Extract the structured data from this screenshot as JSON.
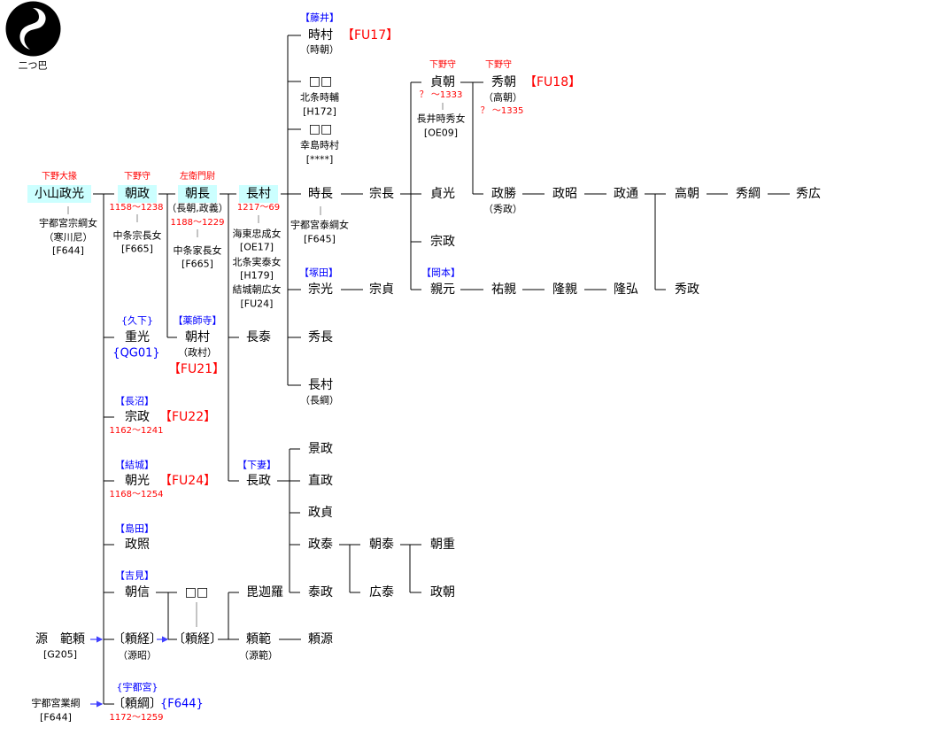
{
  "crest": {
    "label": "二つ巴",
    "icon": "futatsu-tomoe-crest"
  },
  "colors": {
    "highlight": "#ccffff",
    "office_title": "#ff0000",
    "clan_name": "#0000ff",
    "arrow": "#4040ff"
  },
  "p": {
    "masamitsu": {
      "title": "下野大掾",
      "name": "小山政光",
      "spouse": "宇都宮宗綱女",
      "spouse_alias": "（寒川尼）",
      "spouse_ref": "[F644]"
    },
    "tomomasa": {
      "title": "下野守",
      "name": "朝政",
      "dates": "1158～1238",
      "spouse": "中条宗長女",
      "spouse_ref": "[F665]"
    },
    "tomonaga": {
      "title": "左衛門尉",
      "name": "朝長",
      "alias": "（長朝,政義）",
      "dates": "1188～1229",
      "spouse": "中条家長女",
      "spouse_ref": "[F665]"
    },
    "nagamura": {
      "name": "長村",
      "dates": "1217～69",
      "spouse1": "海東忠成女",
      "spouse1_ref": "[OE17]",
      "spouse2": "北条実泰女",
      "spouse2_ref": "[H179]",
      "spouse3": "結城朝広女",
      "spouse3_ref": "[FU24]"
    },
    "tokimura": {
      "clan": "【藤井】",
      "name": "時村",
      "ref": "【FU17】",
      "alias": "（時朝）"
    },
    "unknown1": {
      "name": "□□",
      "mother": "北条時輔",
      "mother_ref": "[H172]"
    },
    "unknown2": {
      "name": "□□",
      "mother": "幸島時村",
      "mother_ref": "[****]"
    },
    "tokinaga": {
      "name": "時長",
      "spouse": "宇都宮泰綱女",
      "spouse_ref": "[F645]"
    },
    "munenaga": {
      "name": "宗長"
    },
    "sadatomo": {
      "title": "下野守",
      "name": "貞朝",
      "dates": "？ ～1333",
      "spouse": "長井時秀女",
      "spouse_ref": "[OE09]"
    },
    "hidetomo": {
      "title": "下野守",
      "name": "秀朝",
      "alias": "（高朝）",
      "dates": "？ ～1335",
      "ref": "【FU18】"
    },
    "sadamitsu": {
      "name": "貞光"
    },
    "munemasa2": {
      "name": "宗政"
    },
    "chikamoto": {
      "clan": "【岡本】",
      "name": "親元"
    },
    "masakatsu": {
      "name": "政勝",
      "alias": "（秀政）"
    },
    "masaaki": {
      "name": "政昭"
    },
    "masamichi": {
      "name": "政通"
    },
    "takatomo": {
      "name": "高朝"
    },
    "hidetsuna": {
      "name": "秀綱"
    },
    "hidehiro": {
      "name": "秀広"
    },
    "hidemasa": {
      "name": "秀政"
    },
    "sukechika": {
      "name": "祐親"
    },
    "takachika": {
      "name": "隆親"
    },
    "takahiro": {
      "name": "隆弘"
    },
    "munemitsu": {
      "clan": "【塚田】",
      "name": "宗光"
    },
    "munesada": {
      "name": "宗貞"
    },
    "hidenaga": {
      "name": "秀長"
    },
    "nagamura2": {
      "name": "長村",
      "alias": "（長綱）"
    },
    "nagayasu": {
      "name": "長泰"
    },
    "nagamasa": {
      "clan": "【下妻】",
      "name": "長政"
    },
    "kagemasa": {
      "name": "景政"
    },
    "naomasa": {
      "name": "直政"
    },
    "masasada": {
      "name": "政貞"
    },
    "masayasu": {
      "name": "政泰"
    },
    "yasumasa": {
      "name": "泰政"
    },
    "tomoyasu": {
      "name": "朝泰"
    },
    "hiroyasu": {
      "name": "広泰"
    },
    "tomoshige": {
      "name": "朝重"
    },
    "masatomo": {
      "name": "政朝"
    },
    "shigemitsu": {
      "clan": "{久下}",
      "name": "重光",
      "ref": "{QG01}"
    },
    "tomomura": {
      "clan": "【薬師寺】",
      "name": "朝村",
      "alias": "（政村）",
      "ref": "【FU21】"
    },
    "munemasa": {
      "clan": "【長沼】",
      "name": "宗政",
      "ref": "【FU22】",
      "dates": "1162～1241"
    },
    "tomomitsu": {
      "clan": "【結城】",
      "name": "朝光",
      "ref": "【FU24】",
      "dates": "1168～1254"
    },
    "masateru": {
      "clan": "【島田】",
      "name": "政照"
    },
    "tomonobu": {
      "clan": "【吉見】",
      "name": "朝信"
    },
    "unknown3": {
      "name": "□□"
    },
    "yoritsune": {
      "name": "〔頼経〕",
      "alias": "（源昭）"
    },
    "yoritsune2": {
      "name": "〔頼経〕"
    },
    "bikara": {
      "name": "毘迦羅"
    },
    "yorinori": {
      "name": "頼範",
      "alias": "（源範）"
    },
    "yorimoto": {
      "name": "頼源"
    },
    "noriyori": {
      "name": "源　範頼",
      "ref": "[G205]"
    },
    "yoritsuna": {
      "clan": "{宇都宮}",
      "name": "〔頼綱〕",
      "ref": "{F644}",
      "dates": "1172～1259"
    },
    "narituna": {
      "name": "宇都宮業綱",
      "ref": "[F644]"
    }
  }
}
